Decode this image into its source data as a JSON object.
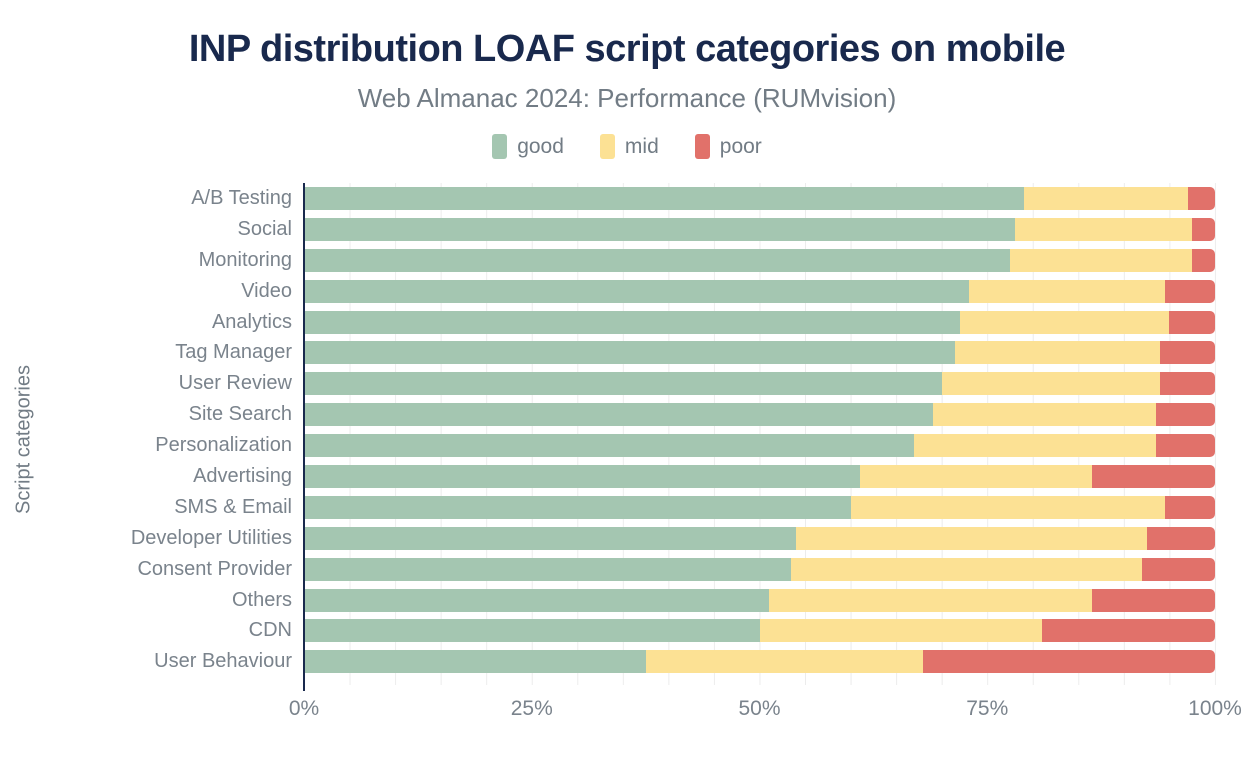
{
  "chart_data": {
    "type": "bar",
    "variant": "horizontal-stacked-100pct",
    "title": "INP distribution LOAF script categories on mobile",
    "subtitle": "Web Almanac 2024: Performance (RUMvision)",
    "ylabel": "Script categories",
    "xlabel": "",
    "xlim": [
      0,
      100
    ],
    "x_tick_labels": [
      "0%",
      "25%",
      "50%",
      "75%",
      "100%"
    ],
    "x_tick_positions": [
      0,
      25,
      50,
      75,
      100
    ],
    "grid": {
      "vertical_lines_every_pct": 5,
      "color": "#ececec"
    },
    "legend_position": "top-center",
    "categories": [
      "A/B Testing",
      "Social",
      "Monitoring",
      "Video",
      "Analytics",
      "Tag Manager",
      "User Review",
      "Site Search",
      "Personalization",
      "Advertising",
      "SMS & Email",
      "Developer Utilities",
      "Consent Provider",
      "Others",
      "CDN",
      "User Behaviour"
    ],
    "series": [
      {
        "name": "good",
        "color": "#a4c6b1",
        "values": [
          79,
          78,
          77.5,
          73,
          72,
          71.5,
          70,
          69,
          67,
          61,
          60,
          54,
          53.5,
          51,
          50,
          37.5
        ]
      },
      {
        "name": "mid",
        "color": "#fce194",
        "values": [
          18,
          19.5,
          20,
          21.5,
          23,
          22.5,
          24,
          24.5,
          26.5,
          25.5,
          34.5,
          38.5,
          38.5,
          35.5,
          31,
          30.5
        ]
      },
      {
        "name": "poor",
        "color": "#e1716a",
        "values": [
          3,
          2.5,
          2.5,
          5.5,
          5,
          6,
          6,
          6.5,
          6.5,
          13.5,
          5.5,
          7.5,
          8,
          13.5,
          19,
          32
        ]
      }
    ],
    "value_unit": "%",
    "colors": {
      "title": "#19294d",
      "subtitle_text": "#727c85",
      "axis_line": "#19294d",
      "tick_text": "#7a838c",
      "background": "#ffffff"
    }
  }
}
